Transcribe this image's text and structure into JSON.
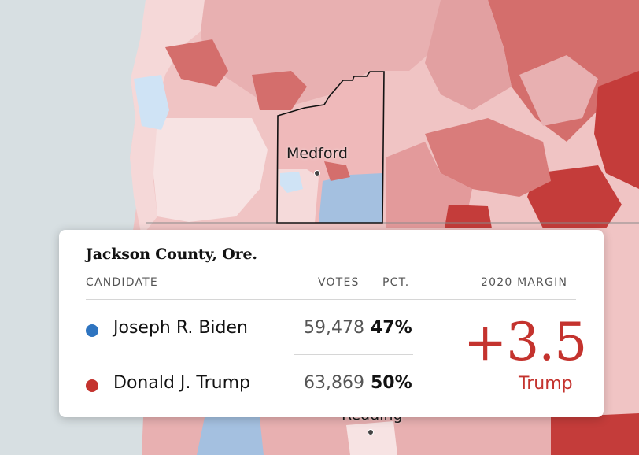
{
  "map": {
    "city_labels": [
      {
        "name": "Medford"
      },
      {
        "name": "Redding"
      }
    ],
    "colors": {
      "water": "#d7dfe2",
      "dem_light": "#cfe3f5",
      "dem_mid": "#a4c0e0",
      "rep_light": "#f6dcdc",
      "rep_mid": "#e6a9aa",
      "rep_dark": "#d46e6c",
      "rep_darkest": "#c43c3a"
    }
  },
  "tooltip": {
    "title": "Jackson County, Ore.",
    "headers": {
      "candidate": "CANDIDATE",
      "votes": "VOTES",
      "pct": "PCT.",
      "margin": "2020 MARGIN"
    },
    "rows": [
      {
        "name": "Joseph R. Biden",
        "votes": "59,478",
        "pct": "47%",
        "color": "#2e74c0"
      },
      {
        "name": "Donald J. Trump",
        "votes": "63,869",
        "pct": "50%",
        "color": "#c4332e"
      }
    ],
    "margin": {
      "value": "+3.5",
      "winner": "Trump"
    }
  }
}
